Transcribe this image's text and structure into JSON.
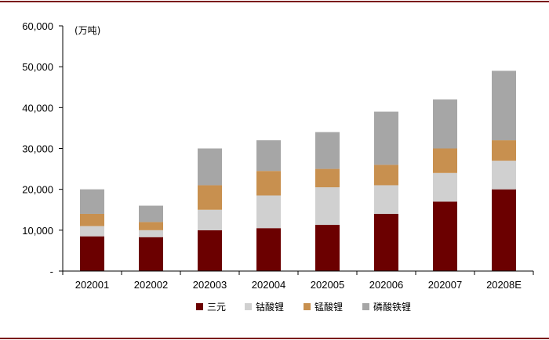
{
  "chart_data": {
    "type": "bar",
    "stacked": true,
    "unit_label": "(万吨)",
    "categories": [
      "202001",
      "202002",
      "202003",
      "202004",
      "202005",
      "202006",
      "202007",
      "20208E"
    ],
    "series": [
      {
        "name": "三元",
        "color": "#6b0000",
        "values": [
          8500,
          8300,
          10000,
          10500,
          11300,
          14000,
          17000,
          20000
        ]
      },
      {
        "name": "钴酸锂",
        "color": "#d0d0d0",
        "values": [
          2500,
          1700,
          5000,
          8000,
          9200,
          7000,
          7000,
          7000
        ]
      },
      {
        "name": "锰酸锂",
        "color": "#c8904f",
        "values": [
          3000,
          2000,
          6000,
          6000,
          4500,
          5000,
          6000,
          5000
        ]
      },
      {
        "name": "磷酸铁锂",
        "color": "#a6a6a6",
        "values": [
          6000,
          4000,
          9000,
          7500,
          9000,
          13000,
          12000,
          17000
        ]
      }
    ],
    "ylim": [
      0,
      60000
    ],
    "yticks": [
      0,
      10000,
      20000,
      30000,
      40000,
      50000,
      60000
    ],
    "ytick_labels": [
      "-",
      "10,000",
      "20,000",
      "30,000",
      "40,000",
      "50,000",
      "60,000"
    ],
    "legend_position": "bottom",
    "grid": false
  }
}
